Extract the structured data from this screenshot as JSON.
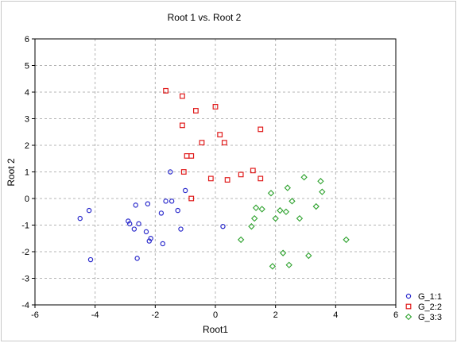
{
  "chart_data": {
    "type": "scatter",
    "title": "Root 1 vs. Root 2",
    "xlabel": "Root1",
    "ylabel": "Root 2",
    "xlim": [
      -6,
      6
    ],
    "ylim": [
      -4,
      6
    ],
    "xticks": [
      -6,
      -4,
      -2,
      0,
      2,
      4,
      6
    ],
    "yticks": [
      -4,
      -3,
      -2,
      -1,
      0,
      1,
      2,
      3,
      4,
      5,
      6
    ],
    "grid": true,
    "legend_position": "bottom-right",
    "series": [
      {
        "name": "G_1:1",
        "color": "#2b2bcc",
        "marker": "circle",
        "points": [
          [
            -4.5,
            -0.75
          ],
          [
            -4.2,
            -0.45
          ],
          [
            -4.15,
            -2.3
          ],
          [
            -2.9,
            -0.85
          ],
          [
            -2.85,
            -0.95
          ],
          [
            -2.7,
            -1.15
          ],
          [
            -2.65,
            -0.25
          ],
          [
            -2.6,
            -2.25
          ],
          [
            -2.55,
            -0.95
          ],
          [
            -2.3,
            -1.25
          ],
          [
            -2.25,
            -0.2
          ],
          [
            -2.2,
            -1.6
          ],
          [
            -2.15,
            -1.5
          ],
          [
            -1.8,
            -0.55
          ],
          [
            -1.75,
            -1.7
          ],
          [
            -1.65,
            -0.1
          ],
          [
            -1.5,
            1.0
          ],
          [
            -1.45,
            -0.1
          ],
          [
            -1.25,
            -0.45
          ],
          [
            -1.15,
            -1.15
          ],
          [
            -1.0,
            0.3
          ],
          [
            0.25,
            -1.05
          ]
        ]
      },
      {
        "name": "G_2:2",
        "color": "#e01b1b",
        "marker": "square",
        "points": [
          [
            -1.65,
            4.05
          ],
          [
            -1.1,
            3.85
          ],
          [
            -1.1,
            2.75
          ],
          [
            -1.05,
            1.0
          ],
          [
            -0.95,
            1.6
          ],
          [
            -0.8,
            1.6
          ],
          [
            -0.8,
            0.0
          ],
          [
            -0.65,
            3.3
          ],
          [
            -0.45,
            2.1
          ],
          [
            -0.15,
            0.75
          ],
          [
            0.0,
            3.45
          ],
          [
            0.15,
            2.4
          ],
          [
            0.3,
            2.1
          ],
          [
            0.4,
            0.7
          ],
          [
            0.85,
            0.9
          ],
          [
            1.25,
            1.05
          ],
          [
            1.5,
            2.6
          ],
          [
            1.5,
            0.75
          ]
        ]
      },
      {
        "name": "G_3:3",
        "color": "#2ea22e",
        "marker": "diamond",
        "points": [
          [
            0.85,
            -1.55
          ],
          [
            1.2,
            -1.05
          ],
          [
            1.3,
            -0.75
          ],
          [
            1.35,
            -0.35
          ],
          [
            1.55,
            -0.4
          ],
          [
            1.85,
            0.2
          ],
          [
            1.9,
            -2.55
          ],
          [
            2.0,
            -0.75
          ],
          [
            2.15,
            -0.45
          ],
          [
            2.25,
            -2.05
          ],
          [
            2.35,
            -0.5
          ],
          [
            2.4,
            0.4
          ],
          [
            2.45,
            -2.5
          ],
          [
            2.55,
            -0.1
          ],
          [
            2.8,
            -0.75
          ],
          [
            2.95,
            0.8
          ],
          [
            3.1,
            -2.15
          ],
          [
            3.35,
            -0.3
          ],
          [
            3.5,
            0.65
          ],
          [
            3.55,
            0.25
          ],
          [
            4.35,
            -1.55
          ]
        ]
      }
    ]
  }
}
